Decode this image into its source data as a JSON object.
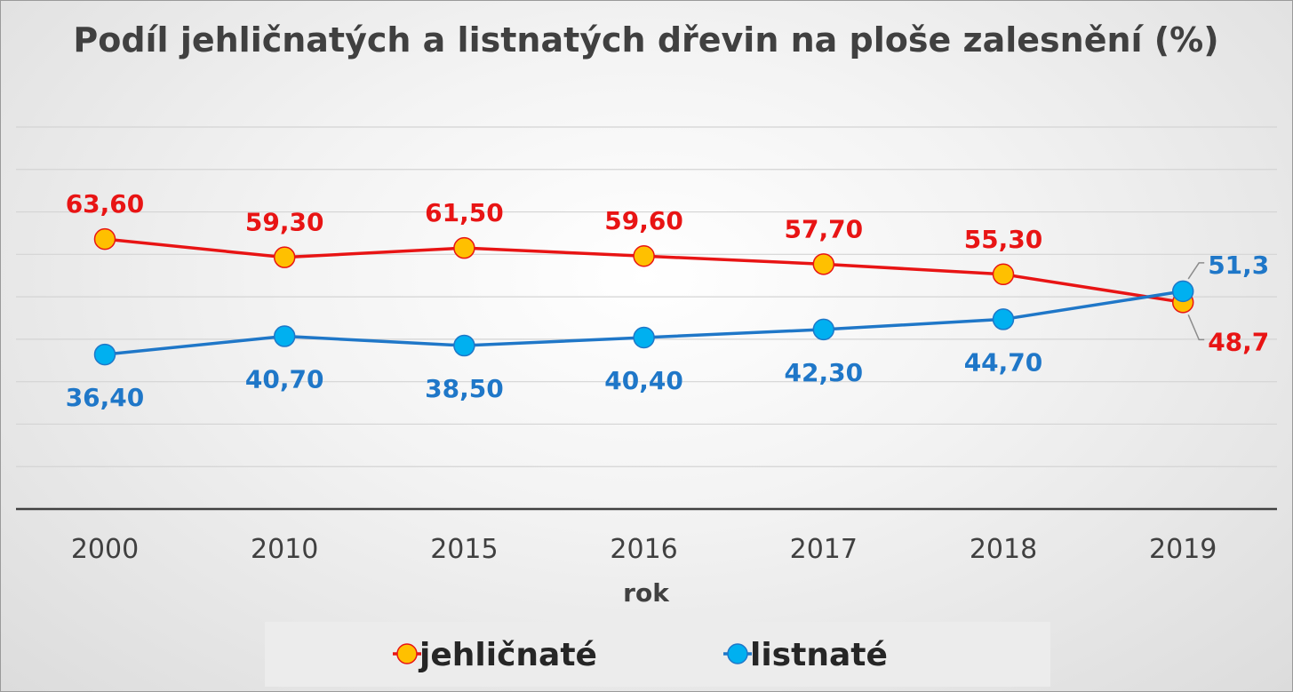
{
  "chart_data": {
    "type": "line",
    "title": "Podíl jehličnatých a listnatých dřevin na ploše zalesnění (%)",
    "xlabel": "rok",
    "ylabel": "",
    "categories": [
      "2000",
      "2010",
      "2015",
      "2016",
      "2017",
      "2018",
      "2019"
    ],
    "ylim": [
      0,
      90
    ],
    "grid": true,
    "legend_position": "bottom",
    "series": [
      {
        "name": "jehličnaté",
        "values": [
          63.6,
          59.3,
          61.5,
          59.6,
          57.7,
          55.3,
          48.7
        ],
        "labels": [
          "63,60",
          "59,30",
          "61,50",
          "59,60",
          "57,70",
          "55,30",
          "48,7"
        ],
        "line_color": "#e81414",
        "marker_color": "#ffc000",
        "label_color": "#e81414"
      },
      {
        "name": "listnaté",
        "values": [
          36.4,
          40.7,
          38.5,
          40.4,
          42.3,
          44.7,
          51.3
        ],
        "labels": [
          "36,40",
          "40,70",
          "38,50",
          "40,40",
          "42,30",
          "44,70",
          "51,3"
        ],
        "line_color": "#1f77c8",
        "marker_color": "#00b0f0",
        "label_color": "#1f77c8"
      }
    ]
  }
}
